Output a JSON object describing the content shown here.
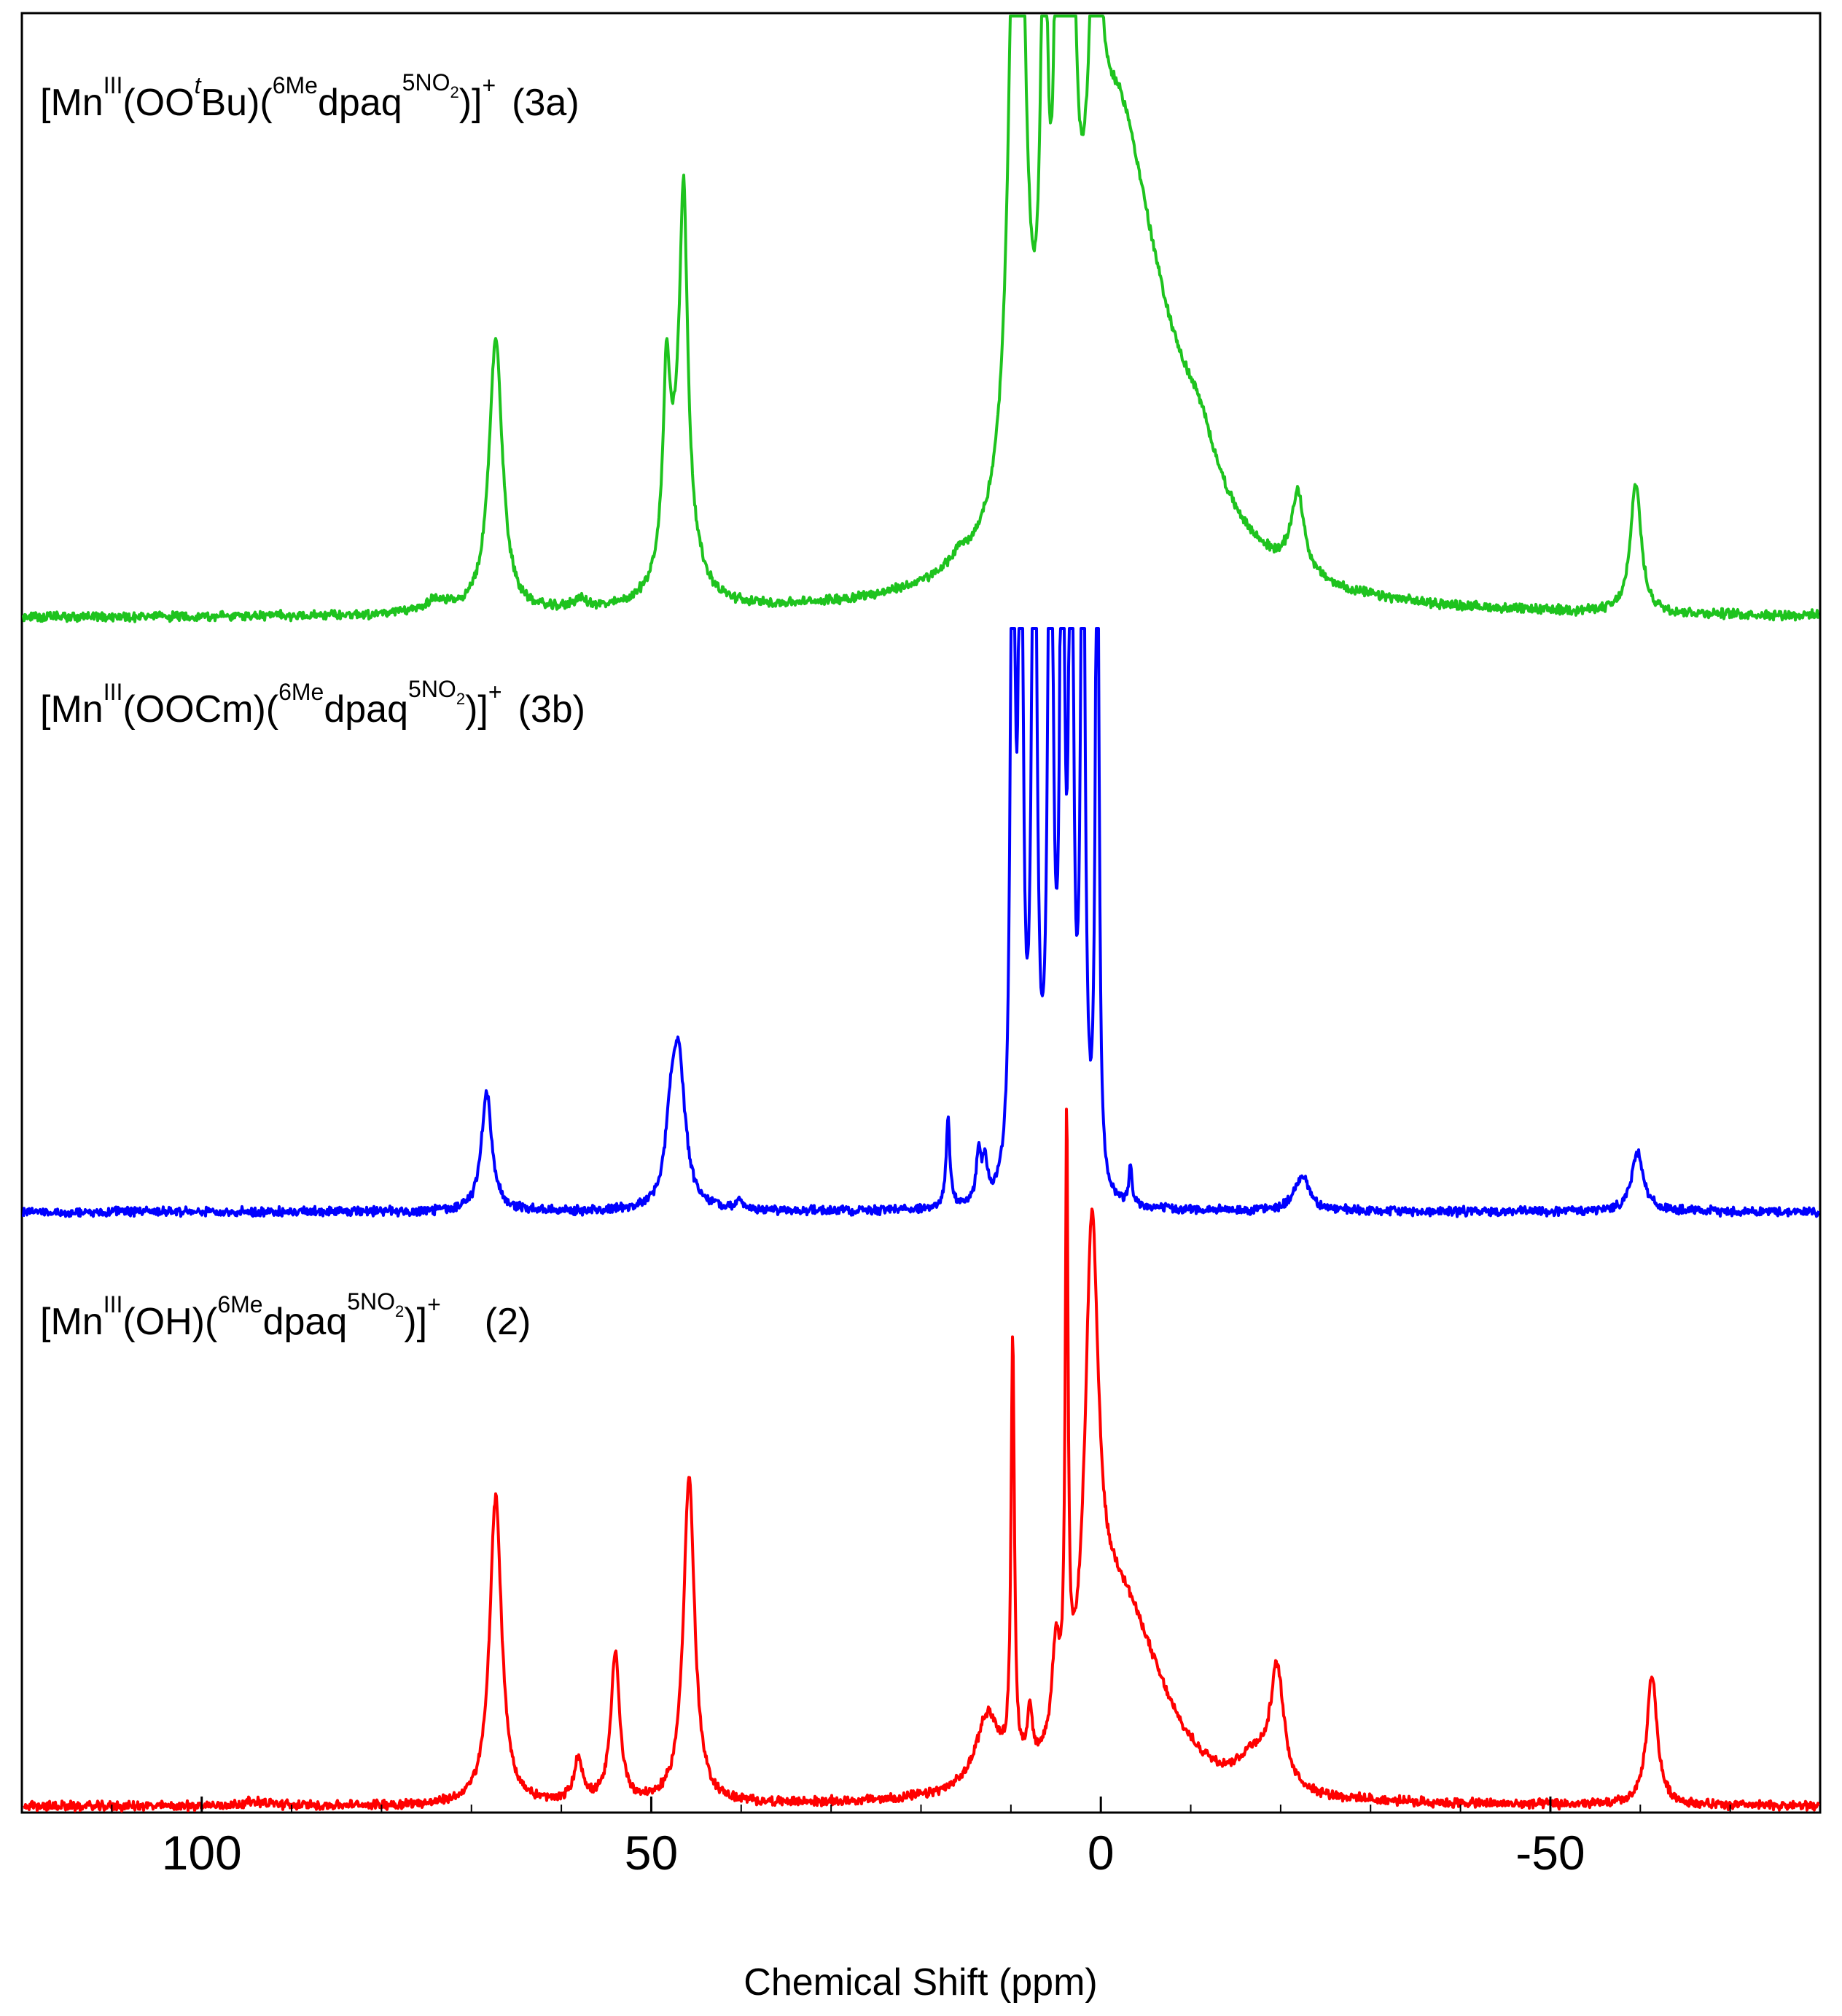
{
  "chart_data": {
    "type": "line",
    "xlabel": "Chemical Shift (ppm)",
    "ylabel": "",
    "xlim": [
      120,
      -80
    ],
    "x_reversed": true,
    "xticks": [
      100,
      50,
      0,
      -50
    ],
    "xtick_labels": [
      "100",
      "50",
      "0",
      "-50"
    ],
    "grid": false,
    "legend": "none",
    "series": [
      {
        "label": {
          "prefix": "[Mn",
          "ox": "III",
          "ligand_a": "(OO",
          "ligand_sup": "t",
          "ligand_b": "Bu)(",
          "lig_pre": "6Me",
          "lig": "dpaq",
          "lig_sup": "5NO",
          "lig_sup_sub": "2",
          "close": ")]",
          "charge": "+",
          "id": "(3a)"
        },
        "color": "#1ec31e",
        "clipped": true,
        "peaks": [
          {
            "x": 74,
            "h": 0.02,
            "w": 1.5
          },
          {
            "x": 67.3,
            "h": 0.44,
            "w": 0.9
          },
          {
            "x": 58,
            "h": 0.015,
            "w": 1.0
          },
          {
            "x": 48.3,
            "h": 0.28,
            "w": 0.45
          },
          {
            "x": 46.4,
            "h": 0.48,
            "w": 0.5
          },
          {
            "x": 46.9,
            "h": 0.22,
            "w": 1.6
          },
          {
            "x": 15.8,
            "h": 0.018,
            "w": 1.0
          },
          {
            "x": 9.3,
            "h": 1.6,
            "w": 0.8
          },
          {
            "x": 6.3,
            "h": 0.8,
            "w": 0.45
          },
          {
            "x": 4.8,
            "h": 0.9,
            "w": 0.35
          },
          {
            "x": 3.5,
            "h": 1.8,
            "w": 0.4
          },
          {
            "x": 0.6,
            "h": 0.6,
            "w": 0.6
          },
          {
            "x": -1.5,
            "h": 0.65,
            "w": 5.0
          },
          {
            "x": -6,
            "h": 0.2,
            "w": 7
          },
          {
            "x": -11,
            "h": 0.07,
            "w": 2.5
          },
          {
            "x": -21.9,
            "h": 0.13,
            "w": 0.9
          },
          {
            "x": -59.5,
            "h": 0.21,
            "w": 0.7
          }
        ]
      },
      {
        "label": {
          "prefix": "[Mn",
          "ox": "III",
          "ligand_a": "(OOCm)(",
          "ligand_sup": "",
          "ligand_b": "",
          "lig_pre": "6Me",
          "lig": "dpaq",
          "lig_sup": "5NO",
          "lig_sup_sub": "2",
          "close": ")]",
          "charge": "+",
          "id": "(3b)"
        },
        "color": "#0000ff",
        "clipped": true,
        "peaks": [
          {
            "x": 68.3,
            "h": 0.2,
            "w": 0.7
          },
          {
            "x": 47,
            "h": 0.26,
            "w": 0.9
          },
          {
            "x": 47.9,
            "h": 0.09,
            "w": 0.6
          },
          {
            "x": 40.2,
            "h": 0.015,
            "w": 0.4
          },
          {
            "x": 17,
            "h": 0.15,
            "w": 0.25
          },
          {
            "x": 13.6,
            "h": 0.085,
            "w": 0.3
          },
          {
            "x": 12.9,
            "h": 0.07,
            "w": 0.3
          },
          {
            "x": 9.8,
            "h": 1.5,
            "w": 0.25
          },
          {
            "x": 8.9,
            "h": 1.5,
            "w": 0.25
          },
          {
            "x": 7.4,
            "h": 1.5,
            "w": 0.3
          },
          {
            "x": 5.6,
            "h": 1.5,
            "w": 0.3
          },
          {
            "x": 4.3,
            "h": 1.5,
            "w": 0.25
          },
          {
            "x": 3.3,
            "h": 1.5,
            "w": 0.25
          },
          {
            "x": 2.0,
            "h": 1.5,
            "w": 0.25
          },
          {
            "x": 0.4,
            "h": 1.5,
            "w": 0.2
          },
          {
            "x": -3.3,
            "h": 0.07,
            "w": 0.2
          },
          {
            "x": -22.4,
            "h": 0.06,
            "w": 1.0
          },
          {
            "x": -59.7,
            "h": 0.1,
            "w": 0.8
          }
        ]
      },
      {
        "label": {
          "prefix": "[Mn",
          "ox": "III",
          "ligand_a": "(OH)(",
          "ligand_sup": "",
          "ligand_b": "",
          "lig_pre": "6Me",
          "lig": "dpaq",
          "lig_sup": "5NO",
          "lig_sup_sub": "2",
          "close": ")]",
          "charge": "+",
          "id": "(2)"
        },
        "color": "#ff0000",
        "clipped": false,
        "peaks": [
          {
            "x": 94,
            "h": 0.007,
            "w": 2.0
          },
          {
            "x": 67.3,
            "h": 0.5,
            "w": 0.8
          },
          {
            "x": 58.1,
            "h": 0.07,
            "w": 0.6
          },
          {
            "x": 54,
            "h": 0.24,
            "w": 0.6
          },
          {
            "x": 45.8,
            "h": 0.53,
            "w": 0.75
          },
          {
            "x": 12.6,
            "h": 0.12,
            "w": 1.6
          },
          {
            "x": 9.8,
            "h": 0.7,
            "w": 0.22
          },
          {
            "x": 7.9,
            "h": 0.09,
            "w": 0.3
          },
          {
            "x": 5.0,
            "h": 0.15,
            "w": 0.5
          },
          {
            "x": 3.8,
            "h": 0.95,
            "w": 0.18
          },
          {
            "x": 1.0,
            "h": 0.75,
            "w": 0.9
          },
          {
            "x": -1.5,
            "h": 0.2,
            "w": 3.5
          },
          {
            "x": -4.5,
            "h": 0.16,
            "w": 5.0
          },
          {
            "x": -17,
            "h": 0.05,
            "w": 2.0
          },
          {
            "x": -19.6,
            "h": 0.19,
            "w": 0.9
          },
          {
            "x": -61.3,
            "h": 0.21,
            "w": 0.7
          }
        ]
      }
    ]
  }
}
